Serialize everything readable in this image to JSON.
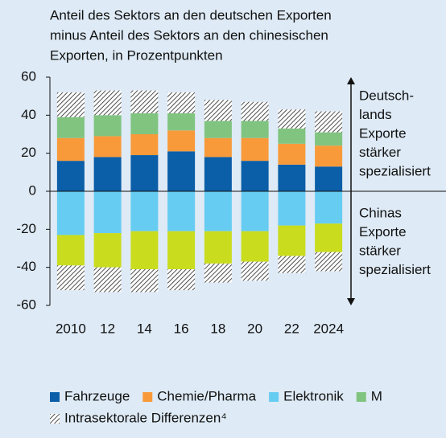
{
  "chart_data": {
    "type": "bar",
    "stacked": true,
    "title": [
      "Anteil des Sektors an den deutschen Exporten",
      "minus Anteil des Sektors an den chinesischen",
      "Exporten, in Prozentpunkten"
    ],
    "categories": [
      "2010",
      "12",
      "14",
      "16",
      "18",
      "20",
      "22",
      "2024"
    ],
    "series": [
      {
        "name": "Fahrzeuge",
        "color": "#0b5ea8",
        "values": [
          16,
          18,
          19,
          21,
          18,
          16,
          14,
          13
        ]
      },
      {
        "name": "Chemie/Pharma",
        "color": "#f89a3a",
        "values": [
          12,
          11,
          11,
          11,
          10,
          12,
          11,
          11
        ]
      },
      {
        "name": "Elektronik",
        "color": "#66ccf2",
        "values": [
          -23,
          -22,
          -21,
          -21,
          -21,
          -21,
          -18,
          -17
        ]
      },
      {
        "name": "M",
        "color": "#80c480",
        "values": [
          11,
          11,
          11,
          9,
          9,
          9,
          8,
          7
        ]
      },
      {
        "color": "#c9dc1e",
        "values": [
          -16,
          -18,
          -20,
          -20,
          -17,
          -16,
          -16,
          -15
        ]
      },
      {
        "name": "Intrasektorale Differenzen⁴",
        "color": "hatch",
        "values": [
          13,
          13,
          12,
          11,
          11,
          10,
          10,
          11
        ]
      },
      {
        "color": "hatch",
        "values": [
          -13,
          -13,
          -12,
          -11,
          -10,
          -10,
          -9,
          -10
        ]
      }
    ],
    "ylim": [
      -60,
      60
    ],
    "yticks": [
      60,
      40,
      20,
      0,
      -20,
      -40,
      -60
    ],
    "annotations": [
      [
        "Deutsch-",
        "lands",
        "Exporte",
        "stärker",
        "spezialisiert"
      ],
      [
        "Chinas",
        "Exporte",
        "stärker",
        "spezialisiert"
      ]
    ]
  }
}
